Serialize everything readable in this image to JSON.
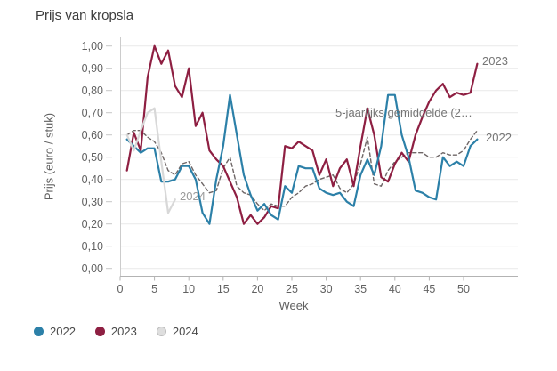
{
  "title": "Prijs van kropsla",
  "y_axis": {
    "label": "Prijs (euro / stuk)",
    "tick_labels": [
      "0,00",
      "0,10",
      "0,20",
      "0,30",
      "0,40",
      "0,50",
      "0,60",
      "0,70",
      "0,80",
      "0,90",
      "1,00"
    ]
  },
  "x_axis": {
    "label": "Week",
    "tick_values": [
      0,
      5,
      10,
      15,
      20,
      25,
      30,
      35,
      40,
      45,
      50
    ]
  },
  "legend": {
    "items": [
      {
        "label": "2022",
        "color": "#2c80a8"
      },
      {
        "label": "2023",
        "color": "#8e1f42"
      },
      {
        "label": "2024",
        "color": "#dedede",
        "border": "#bdbdbd"
      }
    ]
  },
  "annotations": [
    {
      "text": "2023",
      "color": "#757575"
    },
    {
      "text": "2022",
      "color": "#757575"
    },
    {
      "text": "5-jaarlijks gemiddelde (2…",
      "color": "#757575"
    },
    {
      "text": "2024",
      "color": "#9b9b9b"
    }
  ],
  "chart_data": {
    "type": "line",
    "title": "Prijs van kropsla",
    "xlabel": "Week",
    "ylabel": "Prijs (euro / stuk)",
    "xlim": [
      0,
      53
    ],
    "ylim": [
      0.0,
      1.0
    ],
    "y_tick_step": 0.1,
    "grid": "horizontal",
    "legend_position": "bottom-left",
    "weeks": [
      1,
      2,
      3,
      4,
      5,
      6,
      7,
      8,
      9,
      10,
      11,
      12,
      13,
      14,
      15,
      16,
      17,
      18,
      19,
      20,
      21,
      22,
      23,
      24,
      25,
      26,
      27,
      28,
      29,
      30,
      31,
      32,
      33,
      34,
      35,
      36,
      37,
      38,
      39,
      40,
      41,
      42,
      43,
      44,
      45,
      46,
      47,
      48,
      49,
      50,
      51,
      52
    ],
    "series": [
      {
        "name": "2022",
        "color": "#2c80a8",
        "style": "solid",
        "values": [
          0.58,
          0.55,
          0.52,
          0.54,
          0.54,
          0.39,
          0.39,
          0.4,
          0.46,
          0.46,
          0.4,
          0.25,
          0.2,
          0.4,
          0.55,
          0.78,
          0.6,
          0.42,
          0.33,
          0.26,
          0.29,
          0.24,
          0.22,
          0.37,
          0.34,
          0.46,
          0.45,
          0.45,
          0.36,
          0.34,
          0.33,
          0.34,
          0.3,
          0.28,
          0.42,
          0.49,
          0.42,
          0.55,
          0.78,
          0.78,
          0.6,
          0.5,
          0.35,
          0.34,
          0.32,
          0.31,
          0.5,
          0.46,
          0.48,
          0.46,
          0.55,
          0.58
        ]
      },
      {
        "name": "2023",
        "color": "#8e1f42",
        "style": "solid",
        "values": [
          0.44,
          0.61,
          0.53,
          0.86,
          1.0,
          0.92,
          0.98,
          0.82,
          0.77,
          0.9,
          0.64,
          0.7,
          0.53,
          0.49,
          0.46,
          0.39,
          0.32,
          0.2,
          0.24,
          0.2,
          0.23,
          0.28,
          0.27,
          0.55,
          0.54,
          0.57,
          0.55,
          0.53,
          0.42,
          0.49,
          0.37,
          0.45,
          0.49,
          0.37,
          0.55,
          0.72,
          0.6,
          0.41,
          0.39,
          0.47,
          0.52,
          0.48,
          0.6,
          0.68,
          0.75,
          0.8,
          0.83,
          0.77,
          0.79,
          0.78,
          0.79,
          0.92
        ]
      },
      {
        "name": "2024",
        "color": "#d8d8d8",
        "style": "solid",
        "values": [
          0.6,
          0.53,
          0.62,
          0.7,
          0.72,
          0.48,
          0.25,
          0.31
        ]
      },
      {
        "name": "5-jaarlijks gemiddelde",
        "color": "#6e6666",
        "style": "dashed",
        "values": [
          0.6,
          0.62,
          0.62,
          0.59,
          0.57,
          0.52,
          0.44,
          0.42,
          0.47,
          0.48,
          0.42,
          0.38,
          0.34,
          0.35,
          0.45,
          0.5,
          0.37,
          0.34,
          0.33,
          0.29,
          0.26,
          0.29,
          0.28,
          0.28,
          0.32,
          0.34,
          0.37,
          0.38,
          0.4,
          0.41,
          0.42,
          0.36,
          0.34,
          0.38,
          0.47,
          0.59,
          0.38,
          0.37,
          0.44,
          0.48,
          0.5,
          0.52,
          0.52,
          0.52,
          0.5,
          0.5,
          0.52,
          0.51,
          0.51,
          0.53,
          0.58,
          0.62
        ]
      }
    ]
  }
}
